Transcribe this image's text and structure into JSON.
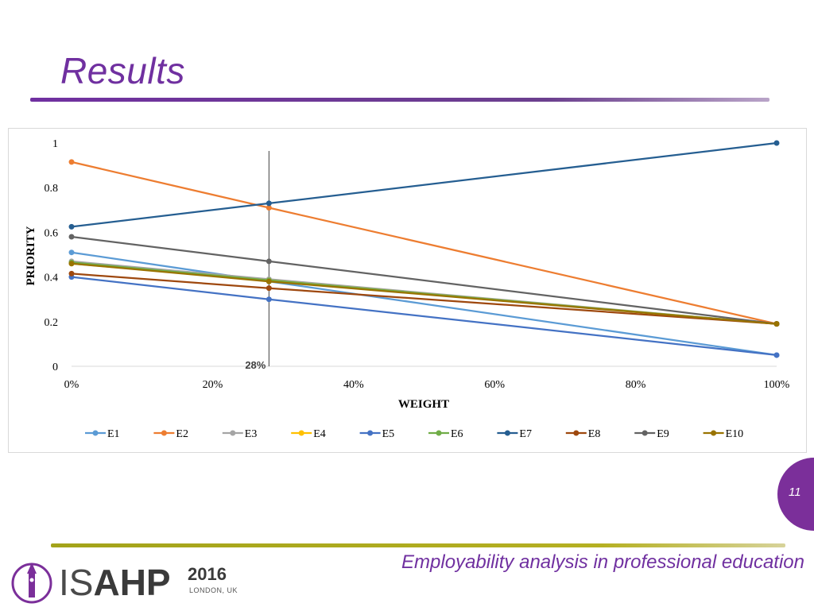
{
  "slide": {
    "title": "Results",
    "page_number": "11",
    "footer": "Employability analysis in professional education"
  },
  "logo": {
    "name_thin": "IS",
    "name_bold": "AHP",
    "year": "2016",
    "city": "LONDON, UK"
  },
  "colors": {
    "title": "#7030a0",
    "badge": "#7b2f9a",
    "footer_rule": "#a3a31a"
  },
  "chart_data": {
    "type": "line",
    "xlabel": "WEIGHT",
    "ylabel": "PRIORITY",
    "x": [
      0,
      28,
      100
    ],
    "xlim": [
      0,
      100
    ],
    "ylim": [
      0,
      1
    ],
    "x_ticks": [
      "0%",
      "20%",
      "40%",
      "60%",
      "80%",
      "100%"
    ],
    "y_ticks": [
      "0",
      "0.2",
      "0.4",
      "0.6",
      "0.8",
      "1"
    ],
    "grid": false,
    "legend_position": "bottom",
    "annotation": {
      "label": "28%",
      "x": 28
    },
    "series": [
      {
        "name": "E1",
        "color": "#5b9bd5",
        "values": [
          0.51,
          0.38,
          0.05
        ]
      },
      {
        "name": "E2",
        "color": "#ed7d31",
        "values": [
          0.915,
          0.71,
          0.19
        ]
      },
      {
        "name": "E3",
        "color": "#a5a5a5",
        "values": [
          0.47,
          0.39,
          0.19
        ]
      },
      {
        "name": "E4",
        "color": "#ffc000",
        "values": [
          0.46,
          0.385,
          0.19
        ]
      },
      {
        "name": "E5",
        "color": "#4472c4",
        "values": [
          0.4,
          0.3,
          0.05
        ]
      },
      {
        "name": "E6",
        "color": "#70ad47",
        "values": [
          0.465,
          0.385,
          0.19
        ]
      },
      {
        "name": "E7",
        "color": "#255e91",
        "values": [
          0.625,
          0.73,
          1.0
        ]
      },
      {
        "name": "E8",
        "color": "#9e480e",
        "values": [
          0.415,
          0.35,
          0.19
        ]
      },
      {
        "name": "E9",
        "color": "#636363",
        "values": [
          0.58,
          0.47,
          0.19
        ]
      },
      {
        "name": "E10",
        "color": "#997300",
        "values": [
          0.46,
          0.38,
          0.19
        ]
      }
    ]
  }
}
